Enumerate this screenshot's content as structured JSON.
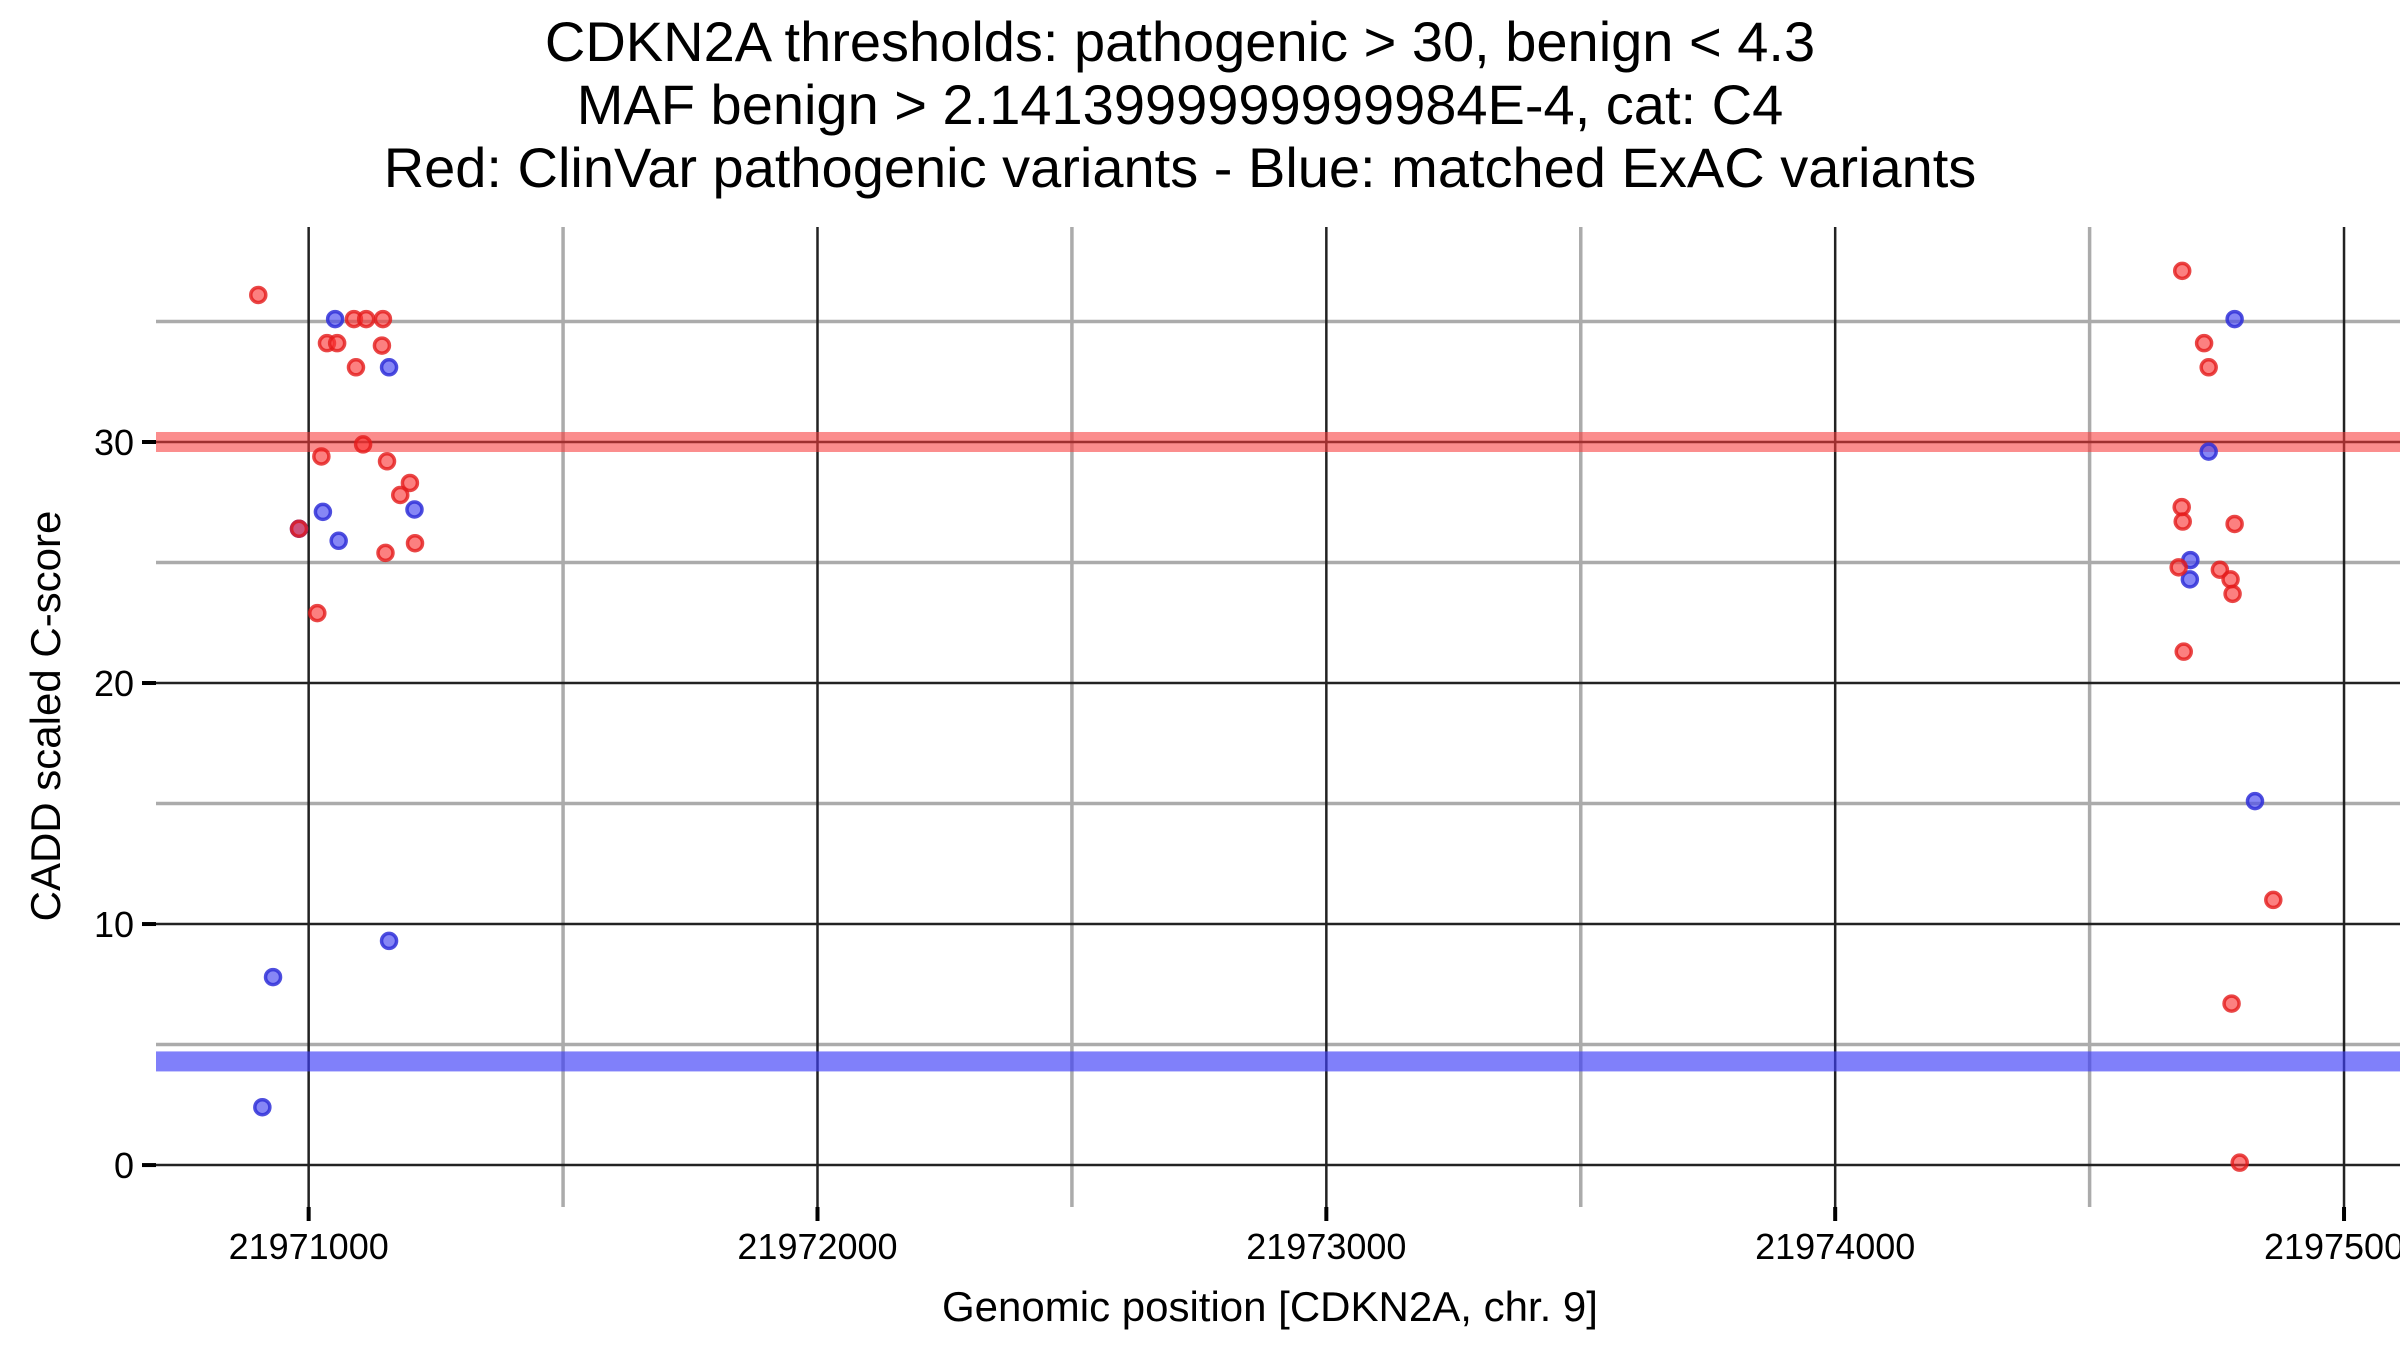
{
  "figure": {
    "background": "#ffffff",
    "grid_major_color": "#222222",
    "grid_minor_color": "#ababab",
    "tick_color": "#000000",
    "text_color": "#000000"
  },
  "chart_data": {
    "type": "scatter",
    "title": "CDKN2A thresholds: pathogenic > 30, benign < 4.3\nMAF benign > 2.1413999999999984E-4, cat: C4\nRed: ClinVar pathogenic variants - Blue: matched ExAC variants",
    "title_lines": [
      "CDKN2A thresholds: pathogenic > 30, benign < 4.3",
      "MAF benign > 2.1413999999999984E-4, cat: C4",
      "Red: ClinVar pathogenic variants - Blue: matched ExAC variants"
    ],
    "xlabel": "Genomic position [CDKN2A, chr. 9]",
    "ylabel": "CADD scaled C-score",
    "xlim": [
      21970700,
      21975110
    ],
    "ylim": [
      -1.74,
      38.92
    ],
    "x_major_ticks": [
      21971000,
      21972000,
      21973000,
      21974000,
      21975000
    ],
    "x_tick_labels": [
      "21971000",
      "21972000",
      "21973000",
      "21974000",
      "21975000"
    ],
    "x_minor_gridlines": [
      21971500,
      21972500,
      21973500,
      21974500
    ],
    "y_major_ticks": [
      0,
      10,
      20,
      30
    ],
    "y_tick_labels": [
      "0",
      "10",
      "20",
      "30"
    ],
    "y_minor_gridlines": [
      5,
      15,
      25,
      35
    ],
    "grid": true,
    "legend_position": "none",
    "hlines": [
      {
        "name": "pathogenic-threshold-band",
        "y": 30,
        "color": "rgba(248,58,58,0.58)",
        "label": "pathogenic > 30"
      },
      {
        "name": "benign-threshold-band",
        "y": 4.3,
        "color": "rgba(62,62,248,0.66)",
        "label": "benign < 4.3"
      }
    ],
    "series": [
      {
        "name": "ClinVar pathogenic variants",
        "color": "red",
        "fill": "rgba(250,50,50,0.62)",
        "stroke": "rgba(228,26,26,0.8)",
        "points": [
          [
            21970901,
            36.1
          ],
          [
            21971089,
            35.1
          ],
          [
            21971113,
            35.1
          ],
          [
            21971146,
            35.1
          ],
          [
            21971036,
            34.1
          ],
          [
            21971056,
            34.1
          ],
          [
            21971144,
            34.0
          ],
          [
            21971093,
            33.1
          ],
          [
            21971107,
            29.9
          ],
          [
            21971025,
            29.4
          ],
          [
            21971154,
            29.2
          ],
          [
            21971199,
            28.3
          ],
          [
            21971180,
            27.8
          ],
          [
            21970981,
            26.4
          ],
          [
            21971209,
            25.8
          ],
          [
            21971151,
            25.4
          ],
          [
            21971017,
            22.9
          ],
          [
            21974682,
            37.1
          ],
          [
            21974725,
            34.1
          ],
          [
            21974734,
            33.1
          ],
          [
            21974681,
            27.3
          ],
          [
            21974683,
            26.7
          ],
          [
            21974785,
            26.6
          ],
          [
            21974675,
            24.8
          ],
          [
            21974756,
            24.7
          ],
          [
            21974777,
            24.3
          ],
          [
            21974781,
            23.7
          ],
          [
            21974685,
            21.3
          ],
          [
            21974861,
            11.0
          ],
          [
            21974779,
            6.7
          ],
          [
            21974795,
            0.1
          ]
        ]
      },
      {
        "name": "matched ExAC variants",
        "color": "blue",
        "fill": "rgba(75,75,240,0.67)",
        "stroke": "rgba(48,48,216,0.85)",
        "points": [
          [
            21971052,
            35.1
          ],
          [
            21971158,
            33.1
          ],
          [
            21971028,
            27.1
          ],
          [
            21971208,
            27.2
          ],
          [
            21970981,
            26.4
          ],
          [
            21971059,
            25.9
          ],
          [
            21971158,
            9.3
          ],
          [
            21970930,
            7.8
          ],
          [
            21970909,
            2.4
          ],
          [
            21974785,
            35.1
          ],
          [
            21974734,
            29.6
          ],
          [
            21974698,
            25.1
          ],
          [
            21974697,
            24.3
          ],
          [
            21974825,
            15.1
          ]
        ]
      }
    ]
  }
}
